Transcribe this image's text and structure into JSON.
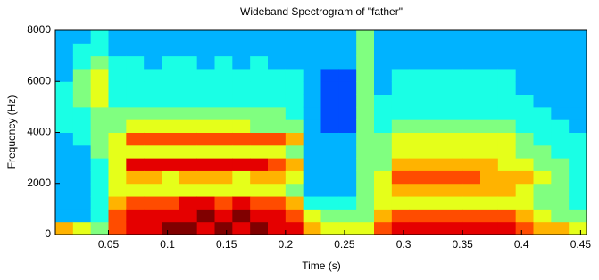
{
  "chart_data": {
    "type": "spectrogram",
    "title": "Wideband Spectrogram of \"father\"",
    "x_label": "Time (s)",
    "y_label": "Frequency (Hz)",
    "colormap": "jet",
    "zlim": [
      0,
      10
    ],
    "xlim": [
      0.005,
      0.455
    ],
    "ylim": [
      0,
      8000
    ],
    "xticks": [
      0.05,
      0.1,
      0.15,
      0.2,
      0.25,
      0.3,
      0.35,
      0.4,
      0.45
    ],
    "yticks": [
      0,
      2000,
      4000,
      6000,
      8000
    ],
    "xbins": [
      0.005,
      0.02,
      0.035,
      0.05,
      0.065,
      0.08,
      0.095,
      0.11,
      0.125,
      0.14,
      0.155,
      0.17,
      0.185,
      0.2,
      0.215,
      0.23,
      0.245,
      0.26,
      0.275,
      0.29,
      0.305,
      0.32,
      0.335,
      0.35,
      0.365,
      0.38,
      0.395,
      0.41,
      0.425,
      0.44,
      0.455
    ],
    "ybins": [
      0,
      500,
      1000,
      1500,
      2000,
      2500,
      3000,
      3500,
      4000,
      4500,
      5000,
      5500,
      6000,
      6500,
      7000,
      7500,
      8000
    ],
    "z": [
      [
        7,
        3,
        3,
        3,
        3,
        3,
        3,
        3,
        4,
        4,
        4,
        4,
        3,
        3,
        3,
        3
      ],
      [
        6,
        3,
        3,
        3,
        3,
        3,
        3,
        4,
        4,
        4,
        5,
        5,
        5,
        4,
        4,
        3
      ],
      [
        5,
        4,
        4,
        4,
        4,
        4,
        5,
        5,
        5,
        5,
        6,
        6,
        6,
        5,
        4,
        4
      ],
      [
        8,
        8,
        7,
        6,
        6,
        6,
        6,
        6,
        5,
        5,
        4,
        4,
        4,
        4,
        3,
        3
      ],
      [
        9,
        9,
        8,
        6,
        7,
        9,
        6,
        8,
        6,
        5,
        4,
        4,
        4,
        4,
        3,
        3
      ],
      [
        9,
        9,
        8,
        6,
        7,
        9,
        6,
        8,
        6,
        5,
        4,
        4,
        4,
        3,
        3,
        3
      ],
      [
        10,
        9,
        8,
        6,
        6,
        9,
        6,
        8,
        6,
        5,
        4,
        4,
        4,
        4,
        3,
        3
      ],
      [
        10,
        9,
        9,
        6,
        7,
        9,
        6,
        8,
        6,
        5,
        4,
        4,
        4,
        4,
        3,
        3
      ],
      [
        9,
        10,
        9,
        6,
        7,
        9,
        6,
        8,
        6,
        5,
        4,
        4,
        4,
        3,
        3,
        3
      ],
      [
        10,
        9,
        8,
        6,
        7,
        9,
        6,
        8,
        6,
        5,
        4,
        4,
        4,
        4,
        3,
        3
      ],
      [
        9,
        10,
        9,
        6,
        6,
        9,
        6,
        8,
        6,
        5,
        4,
        4,
        4,
        3,
        3,
        3
      ],
      [
        10,
        9,
        8,
        6,
        7,
        9,
        6,
        8,
        5,
        5,
        4,
        4,
        4,
        4,
        3,
        3
      ],
      [
        9,
        9,
        8,
        6,
        7,
        8,
        6,
        8,
        5,
        5,
        4,
        4,
        4,
        3,
        3,
        3
      ],
      [
        9,
        8,
        7,
        5,
        6,
        7,
        5,
        7,
        5,
        4,
        4,
        4,
        4,
        3,
        3,
        3
      ],
      [
        7,
        6,
        4,
        3,
        3,
        3,
        3,
        3,
        3,
        3,
        3,
        3,
        3,
        3,
        3,
        3
      ],
      [
        6,
        5,
        4,
        3,
        3,
        3,
        3,
        3,
        2,
        2,
        2,
        2,
        2,
        3,
        3,
        3
      ],
      [
        6,
        5,
        4,
        3,
        3,
        3,
        3,
        3,
        2,
        2,
        2,
        2,
        2,
        3,
        3,
        3
      ],
      [
        6,
        5,
        5,
        5,
        5,
        5,
        5,
        5,
        5,
        5,
        5,
        5,
        5,
        5,
        5,
        5
      ],
      [
        8,
        7,
        6,
        6,
        6,
        5,
        5,
        5,
        4,
        4,
        4,
        3,
        3,
        3,
        3,
        3
      ],
      [
        9,
        8,
        6,
        7,
        8,
        7,
        6,
        6,
        5,
        4,
        4,
        4,
        4,
        3,
        3,
        3
      ],
      [
        9,
        8,
        6,
        7,
        8,
        7,
        6,
        6,
        5,
        4,
        4,
        4,
        4,
        3,
        3,
        3
      ],
      [
        9,
        8,
        6,
        7,
        8,
        7,
        6,
        6,
        5,
        4,
        4,
        4,
        4,
        3,
        3,
        3
      ],
      [
        9,
        8,
        6,
        7,
        8,
        7,
        6,
        6,
        5,
        4,
        4,
        4,
        4,
        3,
        3,
        3
      ],
      [
        9,
        8,
        6,
        7,
        8,
        7,
        6,
        6,
        5,
        4,
        4,
        4,
        4,
        3,
        3,
        3
      ],
      [
        9,
        8,
        6,
        7,
        7,
        7,
        6,
        6,
        5,
        4,
        4,
        4,
        4,
        3,
        3,
        3
      ],
      [
        9,
        8,
        6,
        7,
        7,
        6,
        6,
        6,
        5,
        4,
        4,
        4,
        4,
        3,
        3,
        3
      ],
      [
        8,
        7,
        6,
        6,
        7,
        6,
        5,
        5,
        4,
        4,
        4,
        3,
        3,
        3,
        3,
        3
      ],
      [
        7,
        6,
        5,
        5,
        6,
        5,
        5,
        4,
        4,
        4,
        3,
        3,
        3,
        3,
        3,
        3
      ],
      [
        7,
        5,
        5,
        5,
        5,
        5,
        4,
        4,
        4,
        3,
        3,
        3,
        3,
        3,
        3,
        3
      ],
      [
        6,
        5,
        4,
        4,
        4,
        4,
        4,
        4,
        3,
        3,
        3,
        3,
        3,
        3,
        3,
        3
      ]
    ]
  }
}
